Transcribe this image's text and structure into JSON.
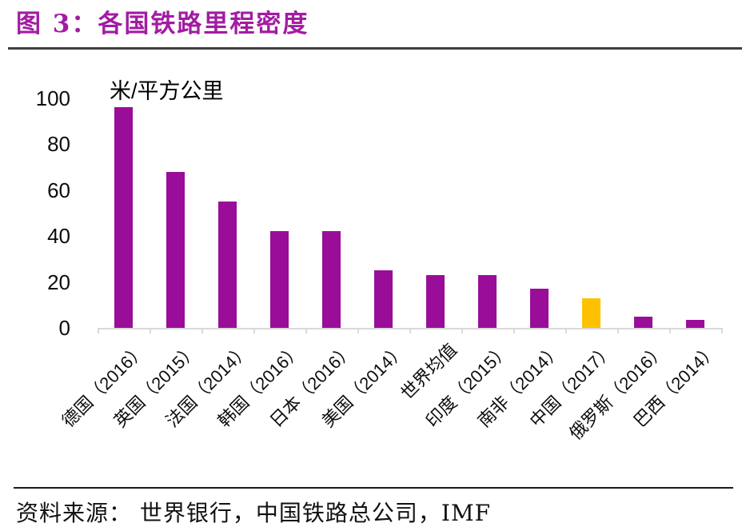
{
  "figure": {
    "title": "图 3：各国铁路里程密度",
    "source": "资料来源： 世界银行，中国铁路总公司，IMF"
  },
  "chart_data": {
    "type": "bar",
    "title": "各国铁路里程密度",
    "unit_label": "米/平方公里",
    "categories": [
      "德国（2016）",
      "英国（2015）",
      "法国（2014）",
      "韩国（2016）",
      "日本（2016）",
      "美国（2014）",
      "世界均值",
      "印度（2015）",
      "南非（2014）",
      "中国（2017）",
      "俄罗斯（2016）",
      "巴西（2014）"
    ],
    "values": [
      96,
      68,
      55,
      42,
      42,
      25,
      23,
      23,
      17,
      13,
      5,
      3.5
    ],
    "bar_colors": [
      "#990D98",
      "#990D98",
      "#990D98",
      "#990D98",
      "#990D98",
      "#990D98",
      "#990D98",
      "#990D98",
      "#990D98",
      "#FFC000",
      "#990D98",
      "#990D98"
    ],
    "highlighted_category": "中国（2017）",
    "ylim": [
      0,
      100
    ],
    "yticks": [
      0,
      20,
      40,
      60,
      80,
      100
    ],
    "grid": false,
    "legend": "none"
  },
  "colors": {
    "title_text": "#A21CA2",
    "bar_default": "#990D98",
    "bar_highlight": "#FFC000",
    "axis_line": "#D9D9D9",
    "title_rule": "#3F3F3F",
    "source_rule": "#1A1A1A",
    "tick_text": "#0d0d0d"
  }
}
